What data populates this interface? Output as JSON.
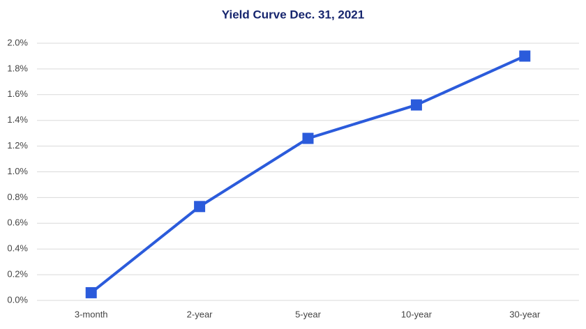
{
  "chart_data": {
    "type": "line",
    "title": "Yield Curve  Dec. 31, 2021",
    "categories": [
      "3-month",
      "2-year",
      "5-year",
      "10-year",
      "30-year"
    ],
    "values": [
      0.06,
      0.73,
      1.26,
      1.52,
      1.9
    ],
    "color": "#2b5bdb",
    "ylim": [
      0,
      2
    ],
    "yticks": [
      {
        "value": 0,
        "label": "0.0%"
      },
      {
        "value": 0.2,
        "label": "0.2%"
      },
      {
        "value": 0.4,
        "label": "0.4%"
      },
      {
        "value": 0.6,
        "label": "0.6%"
      },
      {
        "value": 0.8,
        "label": "0.8%"
      },
      {
        "value": 1,
        "label": "1.0%"
      },
      {
        "value": 1.2,
        "label": "1.2%"
      },
      {
        "value": 1.4,
        "label": "1.4%"
      },
      {
        "value": 1.6,
        "label": "1.6%"
      },
      {
        "value": 1.8,
        "label": "1.8%"
      },
      {
        "value": 2,
        "label": "2.0%"
      }
    ],
    "grid": true
  }
}
